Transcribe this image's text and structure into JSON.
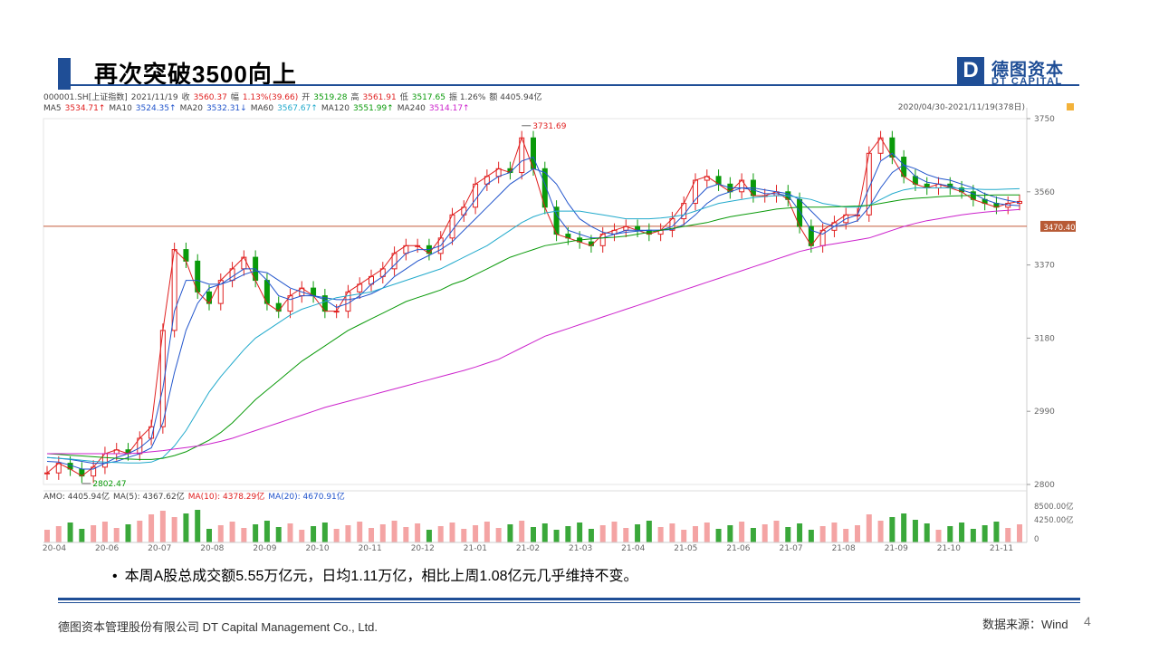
{
  "header": {
    "title": "再次突破3500向上",
    "logo_letter": "D",
    "logo_cn": "德图资本",
    "logo_en": "DT CAPITAL"
  },
  "chart_info": {
    "line1": [
      {
        "text": "000001.SH[上证指数]",
        "color": "#444444"
      },
      {
        "text": "2021/11/19",
        "color": "#444444"
      },
      {
        "text": "收",
        "color": "#444444"
      },
      {
        "text": "3560.37",
        "color": "#e02020"
      },
      {
        "text": "幅",
        "color": "#444444"
      },
      {
        "text": "1.13%(39.66)",
        "color": "#e02020"
      },
      {
        "text": "开",
        "color": "#444444"
      },
      {
        "text": "3519.28",
        "color": "#0a9a0a"
      },
      {
        "text": "高",
        "color": "#444444"
      },
      {
        "text": "3561.91",
        "color": "#e02020"
      },
      {
        "text": "低",
        "color": "#444444"
      },
      {
        "text": "3517.65",
        "color": "#0a9a0a"
      },
      {
        "text": "振 1.26%",
        "color": "#444444"
      },
      {
        "text": "额 4405.94亿",
        "color": "#444444"
      }
    ],
    "line2": [
      {
        "text": "MA5",
        "color": "#444444"
      },
      {
        "text": "3534.71↑",
        "color": "#e02020"
      },
      {
        "text": "MA10",
        "color": "#444444"
      },
      {
        "text": "3524.35↑",
        "color": "#2255cc"
      },
      {
        "text": "MA20",
        "color": "#444444"
      },
      {
        "text": "3532.31↓",
        "color": "#2255cc"
      },
      {
        "text": "MA60",
        "color": "#444444"
      },
      {
        "text": "3567.67↑",
        "color": "#22aacc"
      },
      {
        "text": "MA120",
        "color": "#444444"
      },
      {
        "text": "3551.99↑",
        "color": "#0a9a0a"
      },
      {
        "text": "MA240",
        "color": "#444444"
      },
      {
        "text": "3514.17↑",
        "color": "#cc22cc"
      }
    ],
    "period": "2020/04/30-2021/11/19(378日)",
    "max_label": "3731.69",
    "min_label": "2802.47",
    "price_tag": "3470.40",
    "vol_line": [
      {
        "text": "AMO: 4405.94亿",
        "color": "#444444"
      },
      {
        "text": "MA(5): 4367.62亿",
        "color": "#444444"
      },
      {
        "text": "MA(10): 4378.29亿",
        "color": "#e02020"
      },
      {
        "text": "MA(20): 4670.91亿",
        "color": "#2255cc"
      }
    ],
    "vol_ticks": [
      "8500.00亿",
      "4250.00亿",
      "0"
    ]
  },
  "chart_data": {
    "type": "line",
    "title": "000001.SH[上证指数]",
    "y_ticks": [
      3750,
      3560,
      3370,
      3180,
      2990,
      2800
    ],
    "ylim": [
      2800,
      3750
    ],
    "x_ticks": [
      "20-04",
      "20-06",
      "20-07",
      "20-08",
      "20-09",
      "20-10",
      "20-11",
      "20-12",
      "21-01",
      "21-02",
      "21-03",
      "21-04",
      "21-05",
      "21-06",
      "21-07",
      "21-08",
      "21-09",
      "21-10",
      "21-11"
    ],
    "reference_line": 3470.4,
    "high": 3731.69,
    "low": 2802.47,
    "series": [
      {
        "name": "MA5",
        "color": "#e02020",
        "values": [
          2830,
          2855,
          2840,
          2822,
          2845,
          2880,
          2890,
          2880,
          2920,
          2950,
          3200,
          3410,
          3380,
          3300,
          3270,
          3330,
          3360,
          3390,
          3330,
          3270,
          3250,
          3290,
          3310,
          3290,
          3250,
          3250,
          3300,
          3320,
          3340,
          3360,
          3400,
          3420,
          3420,
          3400,
          3440,
          3500,
          3520,
          3580,
          3600,
          3620,
          3610,
          3700,
          3620,
          3520,
          3450,
          3440,
          3430,
          3420,
          3450,
          3460,
          3470,
          3460,
          3450,
          3460,
          3490,
          3530,
          3590,
          3600,
          3580,
          3560,
          3590,
          3550,
          3550,
          3560,
          3540,
          3470,
          3420,
          3460,
          3480,
          3500,
          3500,
          3660,
          3700,
          3650,
          3600,
          3580,
          3570,
          3580,
          3570,
          3560,
          3540,
          3530,
          3520,
          3530,
          3535
        ]
      },
      {
        "name": "MA10",
        "color": "#2255cc",
        "values": [
          2860,
          2858,
          2850,
          2840,
          2840,
          2855,
          2870,
          2880,
          2895,
          2920,
          3050,
          3250,
          3330,
          3330,
          3320,
          3320,
          3340,
          3360,
          3360,
          3330,
          3290,
          3280,
          3290,
          3290,
          3280,
          3260,
          3270,
          3290,
          3320,
          3340,
          3370,
          3400,
          3410,
          3410,
          3420,
          3460,
          3500,
          3540,
          3580,
          3600,
          3610,
          3640,
          3650,
          3580,
          3500,
          3460,
          3450,
          3440,
          3440,
          3450,
          3460,
          3460,
          3460,
          3460,
          3470,
          3500,
          3540,
          3570,
          3580,
          3570,
          3570,
          3565,
          3555,
          3555,
          3550,
          3510,
          3460,
          3450,
          3470,
          3490,
          3500,
          3570,
          3640,
          3660,
          3630,
          3600,
          3585,
          3580,
          3575,
          3565,
          3555,
          3540,
          3530,
          3526,
          3524
        ]
      },
      {
        "name": "MA20",
        "color": "#2255cc",
        "values": [
          2870,
          2868,
          2865,
          2860,
          2855,
          2855,
          2860,
          2870,
          2880,
          2895,
          2960,
          3090,
          3200,
          3270,
          3310,
          3320,
          3330,
          3345,
          3355,
          3350,
          3330,
          3310,
          3300,
          3290,
          3285,
          3280,
          3280,
          3285,
          3295,
          3310,
          3340,
          3360,
          3380,
          3395,
          3410,
          3430,
          3460,
          3490,
          3520,
          3550,
          3580,
          3600,
          3620,
          3610,
          3580,
          3530,
          3490,
          3470,
          3455,
          3450,
          3455,
          3458,
          3460,
          3460,
          3462,
          3475,
          3500,
          3530,
          3550,
          3560,
          3570,
          3570,
          3565,
          3560,
          3555,
          3540,
          3510,
          3480,
          3470,
          3475,
          3485,
          3520,
          3570,
          3610,
          3630,
          3620,
          3605,
          3595,
          3590,
          3580,
          3570,
          3555,
          3545,
          3538,
          3532
        ]
      },
      {
        "name": "MA60",
        "color": "#22aacc",
        "values": [
          2870,
          2868,
          2866,
          2863,
          2860,
          2858,
          2857,
          2856,
          2856,
          2858,
          2870,
          2900,
          2940,
          2990,
          3040,
          3080,
          3115,
          3150,
          3180,
          3200,
          3220,
          3240,
          3255,
          3265,
          3275,
          3285,
          3290,
          3295,
          3300,
          3310,
          3320,
          3330,
          3340,
          3350,
          3360,
          3375,
          3390,
          3405,
          3420,
          3440,
          3460,
          3480,
          3495,
          3505,
          3510,
          3510,
          3510,
          3505,
          3500,
          3495,
          3490,
          3490,
          3490,
          3492,
          3495,
          3500,
          3510,
          3520,
          3530,
          3535,
          3540,
          3545,
          3548,
          3550,
          3550,
          3545,
          3540,
          3530,
          3525,
          3520,
          3520,
          3525,
          3540,
          3555,
          3565,
          3570,
          3570,
          3570,
          3570,
          3568,
          3567,
          3566,
          3566,
          3567,
          3568
        ]
      },
      {
        "name": "MA120",
        "color": "#0a9a0a",
        "values": [
          2880,
          2878,
          2876,
          2874,
          2872,
          2870,
          2868,
          2866,
          2865,
          2865,
          2868,
          2875,
          2885,
          2900,
          2915,
          2935,
          2960,
          2990,
          3020,
          3045,
          3070,
          3095,
          3120,
          3140,
          3160,
          3180,
          3200,
          3215,
          3230,
          3245,
          3260,
          3275,
          3285,
          3295,
          3305,
          3320,
          3330,
          3345,
          3360,
          3375,
          3390,
          3400,
          3410,
          3420,
          3425,
          3430,
          3435,
          3438,
          3440,
          3442,
          3445,
          3450,
          3455,
          3460,
          3465,
          3470,
          3475,
          3480,
          3488,
          3495,
          3500,
          3505,
          3510,
          3515,
          3518,
          3520,
          3520,
          3520,
          3521,
          3522,
          3523,
          3525,
          3530,
          3535,
          3540,
          3543,
          3545,
          3547,
          3549,
          3550,
          3551,
          3551,
          3552,
          3552,
          3552
        ]
      },
      {
        "name": "MA240",
        "color": "#cc22cc",
        "values": [
          2880,
          2880,
          2880,
          2880,
          2880,
          2880,
          2880,
          2880,
          2882,
          2885,
          2888,
          2892,
          2896,
          2900,
          2905,
          2912,
          2920,
          2930,
          2940,
          2950,
          2960,
          2970,
          2980,
          2990,
          3000,
          3008,
          3016,
          3024,
          3032,
          3040,
          3048,
          3056,
          3064,
          3072,
          3080,
          3088,
          3096,
          3105,
          3115,
          3125,
          3140,
          3155,
          3170,
          3185,
          3195,
          3205,
          3215,
          3225,
          3235,
          3245,
          3255,
          3265,
          3275,
          3285,
          3295,
          3305,
          3315,
          3325,
          3335,
          3345,
          3355,
          3365,
          3375,
          3385,
          3395,
          3405,
          3412,
          3420,
          3425,
          3430,
          3435,
          3440,
          3450,
          3460,
          3470,
          3478,
          3485,
          3490,
          3495,
          3500,
          3504,
          3507,
          3510,
          3512,
          3514
        ]
      }
    ]
  },
  "footer": {
    "bullet": "•",
    "summary": "本周A股总成交额5.55万亿元，日均1.11万亿，相比上周1.08亿元几乎维持不变。",
    "company": "德图资本管理股份有限公司 DT Capital Management Co., Ltd.",
    "source": "数据来源：Wind",
    "page": "4"
  }
}
